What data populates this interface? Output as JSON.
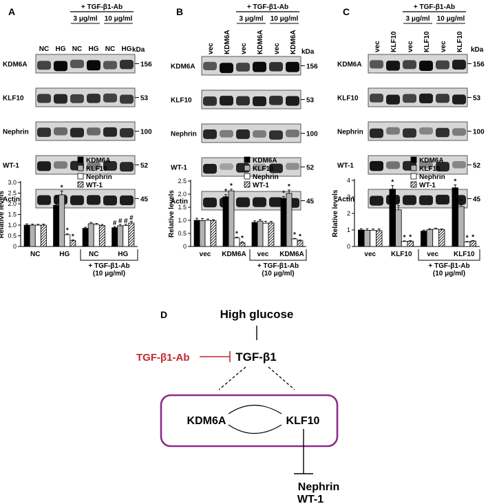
{
  "panels": [
    {
      "id": "A",
      "letter": "A",
      "treatment_header": "+ TGF-β1-Ab",
      "conc_headers": [
        "3 μg/ml",
        "10 μg/ml"
      ],
      "lane_labels": [
        "NC",
        "HG",
        "NC",
        "HG",
        "NC",
        "HG"
      ],
      "blot_rows": [
        "KDM6A",
        "KLF10",
        "Nephrin",
        "WT-1",
        "Actin"
      ],
      "kda_header": "kDa",
      "kda_values": [
        "156",
        "53",
        "100",
        "52",
        "45"
      ]
    },
    {
      "id": "B",
      "letter": "B",
      "treatment_header": "+ TGF-β1-Ab",
      "conc_headers": [
        "3 μg/ml",
        "10 μg/ml"
      ],
      "lane_labels": [
        "vec",
        "KDM6A",
        "vec",
        "KDM6A",
        "vec",
        "KDM6A"
      ],
      "blot_rows": [
        "KDM6A",
        "KLF10",
        "Nephrin",
        "WT-1",
        "Actin"
      ],
      "kda_header": "kDa",
      "kda_values": [
        "156",
        "53",
        "100",
        "52",
        "45"
      ]
    },
    {
      "id": "C",
      "letter": "C",
      "treatment_header": "+ TGF-β1-Ab",
      "conc_headers": [
        "3 μg/ml",
        "10 μg/ml"
      ],
      "lane_labels": [
        "vec",
        "KLF10",
        "vec",
        "KLF10",
        "vec",
        "KLF10"
      ],
      "blot_rows": [
        "KDM6A",
        "KLF10",
        "Nephrin",
        "WT-1",
        "Actin"
      ],
      "kda_header": "kDa",
      "kda_values": [
        "156",
        "53",
        "100",
        "52",
        "45"
      ]
    }
  ],
  "chart_data": [
    {
      "type": "bar",
      "panel": "A",
      "categories": [
        "NC",
        "HG",
        "NC",
        "HG"
      ],
      "group_label": "+ TGF-β1-Ab",
      "group_sublabel": "(10 μg/ml)",
      "ylabel": "Relative levels",
      "ylim": [
        0,
        3.0
      ],
      "yticks": [
        "0",
        "0.5",
        "1.0",
        "1.5",
        "2.0",
        "2.5",
        "3.0"
      ],
      "legend_position": "top-right",
      "series": [
        {
          "name": "KDM6A",
          "color": "#000000",
          "pattern": "solid",
          "values": [
            1.0,
            1.93,
            0.85,
            0.88
          ],
          "errors": [
            0.06,
            0.18,
            0.05,
            0.05
          ],
          "marks": [
            "",
            "*",
            "",
            "#"
          ]
        },
        {
          "name": "KLF10",
          "color": "#b3b3b3",
          "pattern": "solid",
          "values": [
            1.0,
            2.42,
            1.07,
            0.97
          ],
          "errors": [
            0.05,
            0.18,
            0.06,
            0.06
          ],
          "marks": [
            "",
            "*",
            "",
            "#"
          ]
        },
        {
          "name": "Nephrin",
          "color": "#ffffff",
          "pattern": "solid",
          "values": [
            1.0,
            0.55,
            1.03,
            0.98
          ],
          "errors": [
            0.04,
            0.04,
            0.05,
            0.06
          ],
          "marks": [
            "",
            "*",
            "",
            "#"
          ]
        },
        {
          "name": "WT-1",
          "color": "#ffffff",
          "pattern": "hatch",
          "values": [
            1.0,
            0.28,
            0.98,
            1.1
          ],
          "errors": [
            0.05,
            0.03,
            0.05,
            0.08
          ],
          "marks": [
            "",
            "*",
            "",
            "#"
          ]
        }
      ]
    },
    {
      "type": "bar",
      "panel": "B",
      "categories": [
        "vec",
        "KDM6A",
        "vec",
        "KDM6A"
      ],
      "group_label": "+ TGF-β1-Ab",
      "group_sublabel": "(10 μg/ml)",
      "ylabel": "Relative levels",
      "ylim": [
        0,
        2.5
      ],
      "yticks": [
        "0",
        "0.5",
        "1.0",
        "1.5",
        "2.0",
        "2.5"
      ],
      "legend_position": "top-right",
      "series": [
        {
          "name": "KDM6A",
          "color": "#000000",
          "pattern": "solid",
          "values": [
            1.0,
            1.9,
            0.92,
            1.84
          ],
          "errors": [
            0.08,
            0.08,
            0.06,
            0.07
          ],
          "marks": [
            "",
            "*",
            "",
            "*"
          ]
        },
        {
          "name": "KLF10",
          "color": "#b3b3b3",
          "pattern": "solid",
          "values": [
            0.99,
            2.13,
            0.97,
            2.03
          ],
          "errors": [
            0.08,
            0.06,
            0.06,
            0.13
          ],
          "marks": [
            "",
            "*",
            "",
            "*"
          ]
        },
        {
          "name": "Nephrin",
          "color": "#ffffff",
          "pattern": "solid",
          "values": [
            1.0,
            0.33,
            0.89,
            0.29
          ],
          "errors": [
            0.05,
            0.03,
            0.07,
            0.02
          ],
          "marks": [
            "",
            "*",
            "",
            "*"
          ]
        },
        {
          "name": "WT-1",
          "color": "#ffffff",
          "pattern": "hatch",
          "values": [
            0.99,
            0.14,
            0.9,
            0.22
          ],
          "errors": [
            0.04,
            0.04,
            0.06,
            0.03
          ],
          "marks": [
            "",
            "*",
            "",
            "*"
          ]
        }
      ]
    },
    {
      "type": "bar",
      "panel": "C",
      "categories": [
        "vec",
        "KLF10",
        "vec",
        "KLF10"
      ],
      "group_label": "+ TGF-β1-Ab",
      "group_sublabel": "(10 μg/ml)",
      "ylabel": "Relative levels",
      "ylim": [
        0,
        4
      ],
      "yticks": [
        "0",
        "1",
        "2",
        "3",
        "4"
      ],
      "legend_position": "top-right",
      "series": [
        {
          "name": "KDM6A",
          "color": "#000000",
          "pattern": "solid",
          "values": [
            1.0,
            3.47,
            0.93,
            3.55
          ],
          "errors": [
            0.08,
            0.22,
            0.06,
            0.18
          ],
          "marks": [
            "",
            "*",
            "",
            "*"
          ]
        },
        {
          "name": "KLF10",
          "color": "#b3b3b3",
          "pattern": "solid",
          "values": [
            0.98,
            2.22,
            1.02,
            2.42
          ],
          "errors": [
            0.1,
            0.25,
            0.06,
            0.1
          ],
          "marks": [
            "",
            "*",
            "",
            "*"
          ]
        },
        {
          "name": "Nephrin",
          "color": "#ffffff",
          "pattern": "solid",
          "values": [
            0.98,
            0.3,
            1.05,
            0.28
          ],
          "errors": [
            0.08,
            0.04,
            0.06,
            0.03
          ],
          "marks": [
            "",
            "*",
            "",
            "*"
          ]
        },
        {
          "name": "WT-1",
          "color": "#ffffff",
          "pattern": "hatch",
          "values": [
            0.96,
            0.32,
            1.02,
            0.33
          ],
          "errors": [
            0.1,
            0.04,
            0.05,
            0.03
          ],
          "marks": [
            "",
            "*",
            "",
            "*"
          ]
        }
      ]
    }
  ],
  "diagram": {
    "letter": "D",
    "high_glucose": "High glucose",
    "tgf": "TGF-β1",
    "antibody": "TGF-β1-Ab",
    "kdm6a": "KDM6A",
    "klf10": "KLF10",
    "nephrin": "Nephrin",
    "wt1": "WT-1",
    "antibody_color": "#c0282d",
    "box_color": "#8c2a8a"
  }
}
